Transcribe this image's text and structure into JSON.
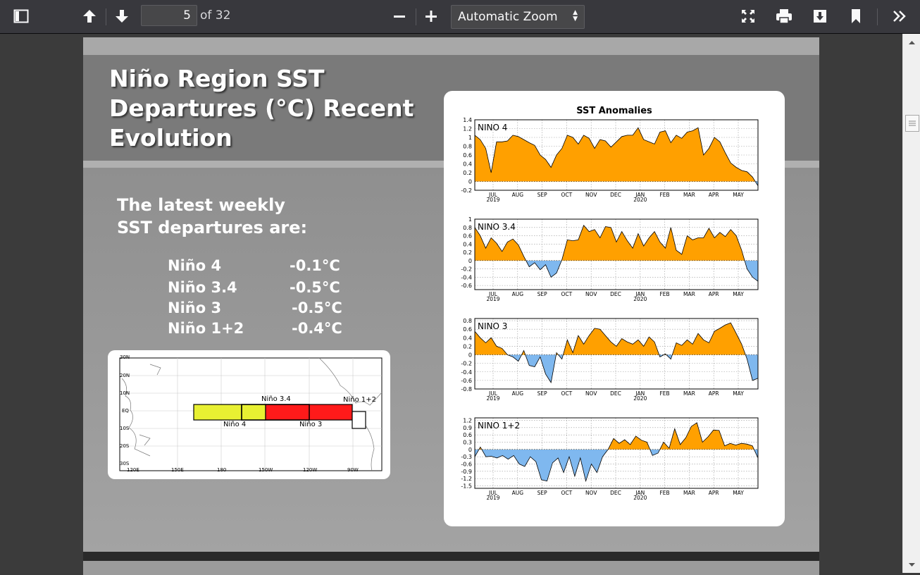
{
  "toolbar": {
    "page_number": "5",
    "page_of": "of 32",
    "zoom": "Automatic Zoom"
  },
  "slide": {
    "title_lines": [
      "Niño Region SST",
      "Departures (°C) Recent",
      "Evolution"
    ],
    "subtitle_lines": [
      "The latest weekly",
      "SST departures are:"
    ],
    "regions": [
      {
        "name": "Niño 4",
        "value": "-0.1°C"
      },
      {
        "name": "Niño 3.4",
        "value": "-0.5°C"
      },
      {
        "name": "Niño 3",
        "value": "-0.5°C"
      },
      {
        "name": "Niño 1+2",
        "value": "-0.4°C"
      }
    ]
  },
  "map": {
    "lat_labels": [
      "30N",
      "20N",
      "10N",
      "EQ",
      "10S",
      "20S",
      "30S"
    ],
    "lon_labels": [
      "120E",
      "150E",
      "180",
      "150W",
      "120W",
      "90W"
    ],
    "box_labels": {
      "nino4": "Niño 4",
      "nino34": "Niño 3.4",
      "nino3": "Niño 3",
      "nino12": "Niño 1+2"
    },
    "colors": {
      "nino4": "#e8f032",
      "nino3": "#ff1a1a",
      "nino12": "#ffffff"
    }
  },
  "chart_data": [
    {
      "type": "area",
      "title": "SST Anomalies",
      "panel": "NINO 4",
      "x_ticks": [
        "JUL 2019",
        "AUG",
        "SEP",
        "OCT",
        "NOV",
        "DEC",
        "JAN 2020",
        "FEB",
        "MAR",
        "APR",
        "MAY"
      ],
      "y_ticks": [
        -0.2,
        0,
        0.2,
        0.4,
        0.6,
        0.8,
        1,
        1.2,
        1.4
      ],
      "ylim": [
        -0.2,
        1.4
      ],
      "values": [
        1.05,
        0.95,
        0.75,
        0.2,
        0.9,
        0.9,
        0.92,
        1.05,
        1.02,
        0.95,
        0.88,
        0.82,
        0.6,
        0.5,
        0.32,
        0.6,
        0.75,
        1.05,
        1.0,
        0.85,
        1.05,
        0.98,
        0.75,
        0.95,
        0.92,
        0.78,
        0.9,
        1.02,
        1.05,
        1.05,
        1.22,
        0.95,
        0.9,
        0.85,
        1.12,
        1.15,
        0.88,
        1.05,
        0.98,
        1.12,
        1.15,
        1.22,
        0.6,
        0.75,
        1.0,
        0.9,
        0.65,
        0.42,
        0.32,
        0.25,
        0.22,
        0.1,
        -0.1
      ],
      "colors": {
        "positive": "#ffa000",
        "negative": "#7fb8ef"
      }
    },
    {
      "type": "area",
      "panel": "NINO 3.4",
      "x_ticks": [
        "JUL 2019",
        "AUG",
        "SEP",
        "OCT",
        "NOV",
        "DEC",
        "JAN 2020",
        "FEB",
        "MAR",
        "APR",
        "MAY"
      ],
      "y_ticks": [
        -0.6,
        -0.4,
        -0.2,
        0,
        0.2,
        0.4,
        0.6,
        0.8,
        1
      ],
      "ylim": [
        -0.7,
        1.0
      ],
      "values": [
        0.8,
        0.6,
        0.3,
        0.55,
        0.42,
        0.22,
        0.45,
        0.52,
        0.38,
        0.1,
        -0.15,
        -0.05,
        -0.22,
        -0.1,
        -0.4,
        -0.3,
        0.02,
        0.5,
        0.48,
        0.5,
        0.85,
        0.7,
        0.75,
        0.55,
        0.82,
        0.8,
        0.45,
        0.7,
        0.48,
        0.3,
        0.65,
        0.35,
        0.55,
        0.7,
        0.45,
        0.3,
        0.8,
        0.25,
        0.15,
        0.6,
        0.5,
        0.55,
        0.55,
        0.78,
        0.55,
        0.68,
        0.58,
        0.75,
        0.6,
        0.25,
        -0.2,
        -0.4,
        -0.5
      ],
      "colors": {
        "positive": "#ffa000",
        "negative": "#7fb8ef"
      }
    },
    {
      "type": "area",
      "panel": "NINO 3",
      "x_ticks": [
        "JUL 2019",
        "AUG",
        "SEP",
        "OCT",
        "NOV",
        "DEC",
        "JAN 2020",
        "FEB",
        "MAR",
        "APR",
        "MAY"
      ],
      "y_ticks": [
        -0.8,
        -0.6,
        -0.4,
        -0.2,
        0,
        0.2,
        0.4,
        0.6,
        0.8
      ],
      "ylim": [
        -0.8,
        0.85
      ],
      "values": [
        0.55,
        0.4,
        0.28,
        0.4,
        0.2,
        0.15,
        0.0,
        -0.05,
        -0.15,
        0.1,
        -0.25,
        -0.28,
        -0.05,
        -0.45,
        -0.65,
        0.05,
        -0.1,
        0.35,
        0.05,
        0.45,
        0.25,
        0.45,
        0.62,
        0.6,
        0.45,
        0.3,
        0.2,
        0.38,
        0.3,
        0.25,
        0.35,
        0.2,
        0.42,
        0.3,
        -0.05,
        0.02,
        -0.1,
        0.28,
        0.22,
        0.35,
        0.25,
        0.5,
        0.35,
        0.28,
        0.55,
        0.62,
        0.7,
        0.75,
        0.5,
        0.25,
        -0.1,
        -0.6,
        -0.55
      ],
      "colors": {
        "positive": "#ffa000",
        "negative": "#7fb8ef"
      }
    },
    {
      "type": "area",
      "panel": "NINO 1+2",
      "x_ticks": [
        "JUL 2019",
        "AUG",
        "SEP",
        "OCT",
        "NOV",
        "DEC",
        "JAN 2020",
        "FEB",
        "MAR",
        "APR",
        "MAY"
      ],
      "y_ticks": [
        -1.5,
        -1.2,
        -0.9,
        -0.6,
        -0.3,
        0,
        0.3,
        0.6,
        0.9,
        1.2
      ],
      "ylim": [
        -1.6,
        1.3
      ],
      "values": [
        -0.3,
        0.1,
        -0.3,
        -0.28,
        -0.35,
        -0.25,
        -0.4,
        -0.25,
        -0.6,
        -0.7,
        -0.3,
        -0.5,
        -1.25,
        -1.3,
        -0.55,
        -0.35,
        -0.95,
        -0.3,
        -1.1,
        -0.35,
        -1.3,
        -0.6,
        -0.95,
        -0.3,
        0.0,
        0.45,
        0.25,
        0.4,
        0.2,
        0.55,
        0.38,
        0.3,
        -0.25,
        -0.15,
        0.3,
        0.05,
        0.85,
        0.2,
        0.48,
        0.95,
        1.1,
        0.3,
        0.52,
        0.8,
        0.78,
        0.15,
        0.25,
        0.18,
        0.25,
        0.22,
        0.15,
        -0.35
      ],
      "colors": {
        "positive": "#ffa000",
        "negative": "#7fb8ef"
      }
    }
  ]
}
